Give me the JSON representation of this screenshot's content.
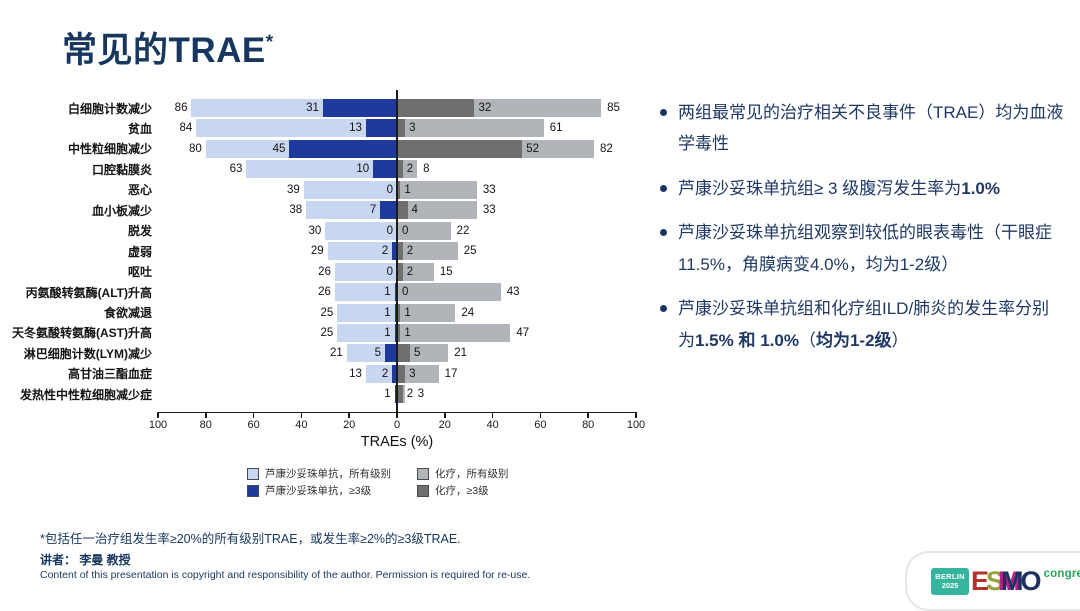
{
  "slide": {
    "title": "常见的TRAE",
    "title_sup": "*"
  },
  "chart_data": {
    "type": "bar",
    "variant": "diverging-horizontal-tornado",
    "xlabel": "TRAEs (%)",
    "axis_ticks": [
      100,
      80,
      60,
      40,
      20,
      0,
      20,
      40,
      60,
      80,
      100
    ],
    "left_axis_max": 100,
    "right_axis_max": 100,
    "grid": false,
    "legend_position": "bottom",
    "colors": {
      "luso_all": "#c8d6f0",
      "luso_g3": "#1e3a9c",
      "chemo_g3": "#6f6f6f",
      "chemo_all": "#b1b5ba"
    },
    "legend": [
      {
        "label": "芦康沙妥珠单抗，所有级别",
        "color_key": "luso_all"
      },
      {
        "label": "芦康沙妥珠单抗，≥3级",
        "color_key": "luso_g3"
      },
      {
        "label": "化疗，所有级别",
        "color_key": "chemo_all"
      },
      {
        "label": "化疗，≥3级",
        "color_key": "chemo_g3"
      }
    ],
    "series_names": [
      "芦康沙妥珠单抗 所有级别",
      "芦康沙妥珠单抗 ≥3级",
      "化疗 ≥3级",
      "化疗 所有级别"
    ],
    "rows": [
      {
        "category": "白细胞计数减少",
        "luso_all": 86,
        "luso_g3": 31,
        "chemo_g3": 32,
        "chemo_all": 85
      },
      {
        "category": "贫血",
        "luso_all": 84,
        "luso_g3": 13,
        "chemo_g3": 3,
        "chemo_all": 61
      },
      {
        "category": "中性粒细胞减少",
        "luso_all": 80,
        "luso_g3": 45,
        "chemo_g3": 52,
        "chemo_all": 82
      },
      {
        "category": "口腔黏膜炎",
        "luso_all": 63,
        "luso_g3": 10,
        "chemo_g3": 2,
        "chemo_all": 8
      },
      {
        "category": "恶心",
        "luso_all": 39,
        "luso_g3": 0,
        "chemo_g3": 1,
        "chemo_all": 33
      },
      {
        "category": "血小板减少",
        "luso_all": 38,
        "luso_g3": 7,
        "chemo_g3": 4,
        "chemo_all": 33
      },
      {
        "category": "脱发",
        "luso_all": 30,
        "luso_g3": 0,
        "chemo_g3": 0,
        "chemo_all": 22
      },
      {
        "category": "虚弱",
        "luso_all": 29,
        "luso_g3": 2,
        "chemo_g3": 2,
        "chemo_all": 25
      },
      {
        "category": "呕吐",
        "luso_all": 26,
        "luso_g3": 0,
        "chemo_g3": 2,
        "chemo_all": 15
      },
      {
        "category": "丙氨酸转氨酶(ALT)升高",
        "luso_all": 26,
        "luso_g3": 1,
        "chemo_g3": 0,
        "chemo_all": 43
      },
      {
        "category": "食欲减退",
        "luso_all": 25,
        "luso_g3": 1,
        "chemo_g3": 1,
        "chemo_all": 24
      },
      {
        "category": "天冬氨酸转氨酶(AST)升高",
        "luso_all": 25,
        "luso_g3": 1,
        "chemo_g3": 1,
        "chemo_all": 47
      },
      {
        "category": "淋巴细胞计数(LYM)减少",
        "luso_all": 21,
        "luso_g3": 5,
        "chemo_g3": 5,
        "chemo_all": 21
      },
      {
        "category": "高甘油三酯血症",
        "luso_all": 13,
        "luso_g3": 2,
        "chemo_g3": 3,
        "chemo_all": 17
      },
      {
        "category": "发热性中性粒细胞减少症",
        "luso_all": 1,
        "luso_g3": 1,
        "chemo_g3": 2,
        "chemo_all": 3,
        "label_overrides": {
          "luso_g3": ""
        }
      }
    ]
  },
  "bullets": [
    {
      "segments": [
        {
          "t": "两组最常见的治疗相关不良事件（TRAE）均为血液学毒性",
          "b": false
        }
      ]
    },
    {
      "segments": [
        {
          "t": "芦康沙妥珠单抗组≥ 3 级腹泻发生率为",
          "b": false
        },
        {
          "t": "1.0%",
          "b": true
        }
      ]
    },
    {
      "segments": [
        {
          "t": "芦康沙妥珠单抗组观察到较低的眼表毒性（干眼症11.5%，角膜病变4.0%，均为1-2级）",
          "b": false
        }
      ]
    },
    {
      "segments": [
        {
          "t": "芦康沙妥珠单抗组和化疗组ILD/肺炎的发生率分别为",
          "b": false
        },
        {
          "t": "1.5% 和 1.0%",
          "b": true
        },
        {
          "t": "（",
          "b": false
        },
        {
          "t": "均为1-2级",
          "b": true
        },
        {
          "t": "）",
          "b": false
        }
      ]
    }
  ],
  "footer": {
    "footnote": "*包括任一治疗组发生率≥20%的所有级别TRAE，或发生率≥2%的≥3级TRAE.",
    "speaker": "讲者： 李曼 教授",
    "copyright": "Content of this presentation is copyright and responsibility of the author. Permission is required for re-use."
  },
  "logo": {
    "venue_line1": "BERLIN",
    "venue_line2": "2025",
    "letters": [
      "E",
      "S",
      "M",
      "O"
    ],
    "congress": "congress",
    "venue_color": "#35b59e",
    "congress_color": "#27a457"
  }
}
